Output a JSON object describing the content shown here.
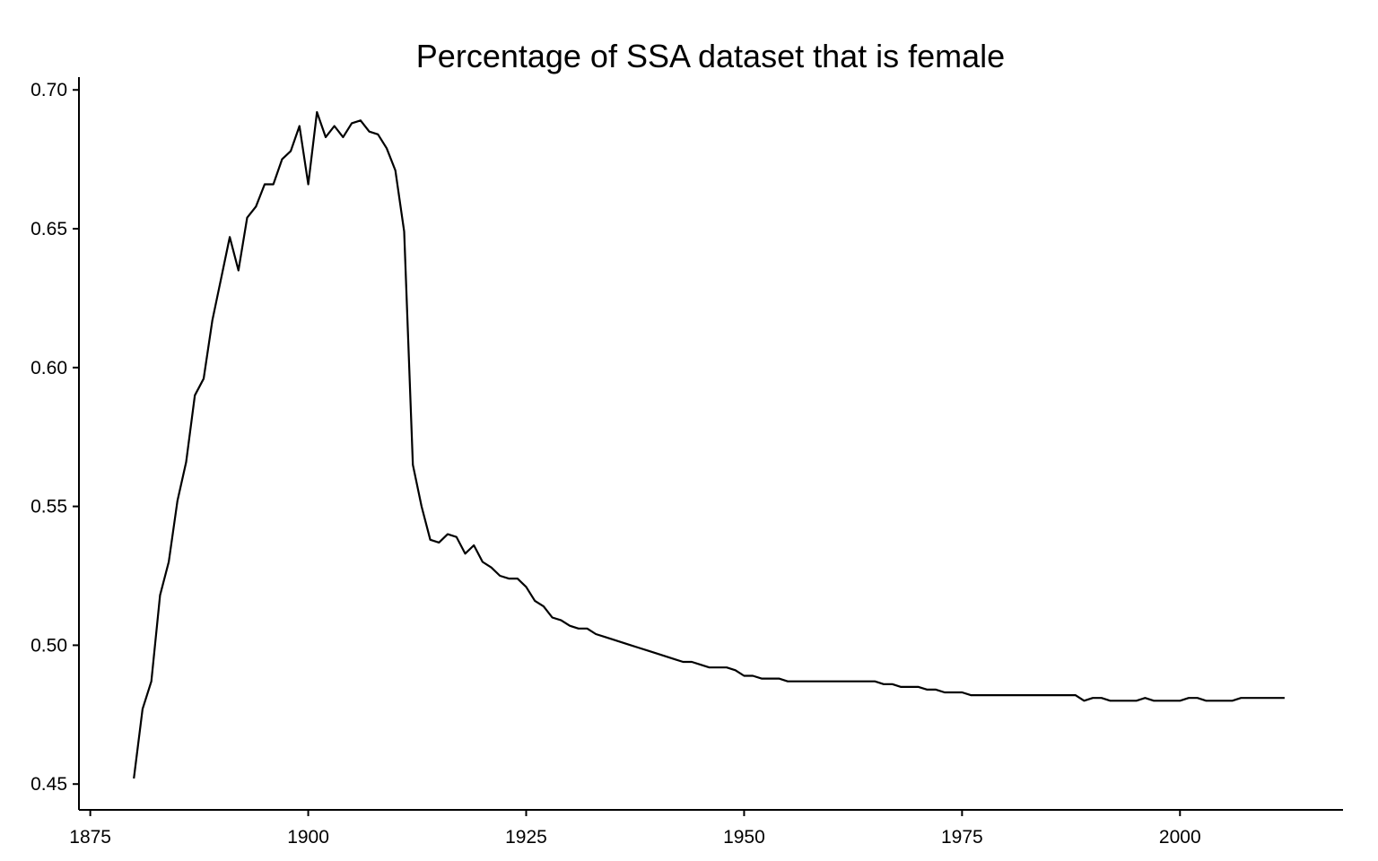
{
  "chart_data": {
    "type": "line",
    "title": "Percentage of SSA dataset that is female",
    "xlabel": "",
    "ylabel": "",
    "xlim": [
      1873.7,
      2018.7
    ],
    "ylim": [
      0.4407,
      0.7046
    ],
    "grid": false,
    "legend": "none",
    "x_ticks": [
      1875,
      1900,
      1925,
      1950,
      1975,
      2000
    ],
    "y_ticks": [
      0.45,
      0.5,
      0.55,
      0.6,
      0.65,
      0.7
    ],
    "y_tick_labels": [
      "0.45",
      "0.50",
      "0.55",
      "0.60",
      "0.65",
      "0.70"
    ],
    "x_tick_labels": [
      "1875",
      "1900",
      "1925",
      "1950",
      "1975",
      "2000"
    ],
    "line_color": "#000000",
    "series": [
      {
        "x": [
          1880,
          1881,
          1882,
          1883,
          1884,
          1885,
          1886,
          1887,
          1888,
          1889,
          1890,
          1891,
          1892,
          1893,
          1894,
          1895,
          1896,
          1897,
          1898,
          1899,
          1900,
          1901,
          1902,
          1903,
          1904,
          1905,
          1906,
          1907,
          1908,
          1909,
          1910,
          1911,
          1912,
          1913,
          1914,
          1915,
          1916,
          1917,
          1918,
          1919,
          1920,
          1921,
          1922,
          1923,
          1924,
          1925,
          1926,
          1927,
          1928,
          1929,
          1930,
          1931,
          1932,
          1933,
          1934,
          1935,
          1936,
          1937,
          1938,
          1939,
          1940,
          1941,
          1942,
          1943,
          1944,
          1945,
          1946,
          1947,
          1948,
          1949,
          1950,
          1951,
          1952,
          1953,
          1954,
          1955,
          1956,
          1957,
          1958,
          1959,
          1960,
          1961,
          1962,
          1963,
          1964,
          1965,
          1966,
          1967,
          1968,
          1969,
          1970,
          1971,
          1972,
          1973,
          1974,
          1975,
          1976,
          1977,
          1978,
          1979,
          1980,
          1981,
          1982,
          1983,
          1984,
          1985,
          1986,
          1987,
          1988,
          1989,
          1990,
          1991,
          1992,
          1993,
          1994,
          1995,
          1996,
          1997,
          1998,
          1999,
          2000,
          2001,
          2002,
          2003,
          2004,
          2005,
          2006,
          2007,
          2008,
          2009,
          2010,
          2011,
          2012
        ],
        "values": [
          0.452,
          0.477,
          0.487,
          0.518,
          0.53,
          0.552,
          0.566,
          0.59,
          0.596,
          0.617,
          0.632,
          0.647,
          0.635,
          0.654,
          0.658,
          0.666,
          0.666,
          0.675,
          0.678,
          0.687,
          0.666,
          0.692,
          0.683,
          0.687,
          0.683,
          0.688,
          0.689,
          0.685,
          0.684,
          0.679,
          0.671,
          0.649,
          0.565,
          0.55,
          0.538,
          0.537,
          0.54,
          0.539,
          0.533,
          0.536,
          0.53,
          0.528,
          0.525,
          0.524,
          0.524,
          0.521,
          0.516,
          0.514,
          0.51,
          0.509,
          0.507,
          0.506,
          0.506,
          0.504,
          0.503,
          0.502,
          0.501,
          0.5,
          0.499,
          0.498,
          0.497,
          0.496,
          0.495,
          0.494,
          0.494,
          0.493,
          0.492,
          0.492,
          0.492,
          0.491,
          0.489,
          0.489,
          0.488,
          0.488,
          0.488,
          0.487,
          0.487,
          0.487,
          0.487,
          0.487,
          0.487,
          0.487,
          0.487,
          0.487,
          0.487,
          0.487,
          0.486,
          0.486,
          0.485,
          0.485,
          0.485,
          0.484,
          0.484,
          0.483,
          0.483,
          0.483,
          0.482,
          0.482,
          0.482,
          0.482,
          0.482,
          0.482,
          0.482,
          0.482,
          0.482,
          0.482,
          0.482,
          0.482,
          0.482,
          0.48,
          0.481,
          0.481,
          0.48,
          0.48,
          0.48,
          0.48,
          0.481,
          0.48,
          0.48,
          0.48,
          0.48,
          0.481,
          0.481,
          0.48,
          0.48,
          0.48,
          0.48,
          0.481,
          0.481,
          0.481,
          0.481,
          0.481,
          0.481
        ]
      }
    ]
  }
}
